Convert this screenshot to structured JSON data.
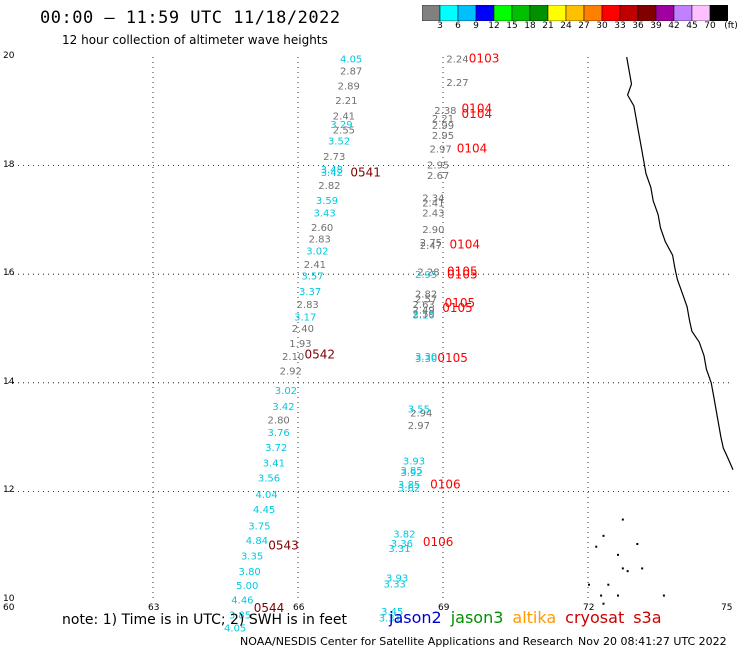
{
  "header": {
    "title": "00:00 – 11:59 UTC 11/18/2022",
    "subtitle": "12 hour collection of altimeter wave heights"
  },
  "colorbar": {
    "colors": [
      "#808080",
      "#00ffff",
      "#00bfff",
      "#0000ff",
      "#00ff00",
      "#00c000",
      "#009000",
      "#ffff00",
      "#ffc000",
      "#ff8000",
      "#ff0000",
      "#c00000",
      "#800000",
      "#a000a0",
      "#c080ff",
      "#ffc0ff",
      "#000000"
    ],
    "labels": [
      "3",
      "6",
      "9",
      "12",
      "15",
      "18",
      "21",
      "24",
      "27",
      "30",
      "33",
      "36",
      "39",
      "42",
      "45",
      "70",
      "(ft)"
    ]
  },
  "map": {
    "lon_range": [
      60,
      75
    ],
    "lat_range": [
      10,
      20
    ],
    "x_ticks": [
      "60",
      "63",
      "66",
      "69",
      "72",
      "75"
    ],
    "y_ticks": [
      "20",
      "18",
      "16",
      "14",
      "12",
      "10"
    ],
    "x_tick_values": [
      60,
      63,
      66,
      69,
      72,
      75
    ],
    "y_tick_values": [
      20,
      18,
      16,
      14,
      12,
      10
    ]
  },
  "swh_cyan": [
    {
      "lon": 67.1,
      "lat": 19.9,
      "v": "4.05"
    },
    {
      "lon": 66.9,
      "lat": 18.69,
      "v": "3.29"
    },
    {
      "lon": 66.85,
      "lat": 18.39,
      "v": "3.52"
    },
    {
      "lon": 66.7,
      "lat": 17.86,
      "v": "3.48"
    },
    {
      "lon": 66.7,
      "lat": 17.81,
      "v": "3.42"
    },
    {
      "lon": 66.6,
      "lat": 17.29,
      "v": "3.59"
    },
    {
      "lon": 66.55,
      "lat": 17.06,
      "v": "3.43"
    },
    {
      "lon": 66.4,
      "lat": 16.36,
      "v": "3.02"
    },
    {
      "lon": 66.3,
      "lat": 15.9,
      "v": "3.57"
    },
    {
      "lon": 66.25,
      "lat": 15.62,
      "v": "3.37"
    },
    {
      "lon": 66.15,
      "lat": 15.15,
      "v": "3.17"
    },
    {
      "lon": 65.75,
      "lat": 13.79,
      "v": "3.02"
    },
    {
      "lon": 65.7,
      "lat": 13.5,
      "v": "3.42"
    },
    {
      "lon": 65.6,
      "lat": 13.02,
      "v": "3.76"
    },
    {
      "lon": 65.55,
      "lat": 12.74,
      "v": "3.72"
    },
    {
      "lon": 65.5,
      "lat": 12.46,
      "v": "3.41"
    },
    {
      "lon": 65.4,
      "lat": 12.18,
      "v": "3.56"
    },
    {
      "lon": 65.35,
      "lat": 11.88,
      "v": "4.04"
    },
    {
      "lon": 65.3,
      "lat": 11.6,
      "v": "4.45"
    },
    {
      "lon": 65.2,
      "lat": 11.3,
      "v": "3.75"
    },
    {
      "lon": 65.15,
      "lat": 11.03,
      "v": "4.84"
    },
    {
      "lon": 65.05,
      "lat": 10.75,
      "v": "3.35"
    },
    {
      "lon": 65.0,
      "lat": 10.46,
      "v": "3.80"
    },
    {
      "lon": 64.95,
      "lat": 10.2,
      "v": "5.00"
    },
    {
      "lon": 64.85,
      "lat": 9.94,
      "v": "4.46"
    },
    {
      "lon": 64.8,
      "lat": 9.66,
      "v": "3.85"
    },
    {
      "lon": 64.7,
      "lat": 9.42,
      "v": "4.05"
    },
    {
      "lon": 68.65,
      "lat": 15.93,
      "v": "2.95"
    },
    {
      "lon": 68.6,
      "lat": 15.18,
      "v": "3.10"
    },
    {
      "lon": 68.65,
      "lat": 14.42,
      "v": "3.30"
    },
    {
      "lon": 68.65,
      "lat": 14.38,
      "v": "3.30"
    },
    {
      "lon": 68.5,
      "lat": 13.45,
      "v": "3.55"
    },
    {
      "lon": 68.4,
      "lat": 12.5,
      "v": "3.93"
    },
    {
      "lon": 68.35,
      "lat": 12.32,
      "v": "3.85"
    },
    {
      "lon": 68.35,
      "lat": 12.28,
      "v": "3.92"
    },
    {
      "lon": 68.3,
      "lat": 12.06,
      "v": "3.85"
    },
    {
      "lon": 68.3,
      "lat": 12.0,
      "v": "3.62"
    },
    {
      "lon": 68.2,
      "lat": 11.15,
      "v": "3.82"
    },
    {
      "lon": 68.15,
      "lat": 10.98,
      "v": "3.36"
    },
    {
      "lon": 68.1,
      "lat": 10.88,
      "v": "3.31"
    },
    {
      "lon": 68.05,
      "lat": 10.34,
      "v": "3.93"
    },
    {
      "lon": 68.0,
      "lat": 10.23,
      "v": "3.33"
    },
    {
      "lon": 67.95,
      "lat": 9.72,
      "v": "3.45"
    },
    {
      "lon": 67.9,
      "lat": 9.6,
      "v": "3.31"
    }
  ],
  "swh_gray": [
    {
      "lon": 67.1,
      "lat": 19.68,
      "v": "2.87"
    },
    {
      "lon": 67.05,
      "lat": 19.4,
      "v": "2.89"
    },
    {
      "lon": 67.0,
      "lat": 19.13,
      "v": "2.21"
    },
    {
      "lon": 66.95,
      "lat": 18.85,
      "v": "2.41"
    },
    {
      "lon": 66.95,
      "lat": 18.59,
      "v": "2.55"
    },
    {
      "lon": 66.75,
      "lat": 18.1,
      "v": "2.73"
    },
    {
      "lon": 66.65,
      "lat": 17.57,
      "v": "2.82"
    },
    {
      "lon": 66.5,
      "lat": 16.8,
      "v": "2.60"
    },
    {
      "lon": 66.45,
      "lat": 16.58,
      "v": "2.83"
    },
    {
      "lon": 66.35,
      "lat": 16.11,
      "v": "2.41"
    },
    {
      "lon": 66.2,
      "lat": 15.38,
      "v": "2.83"
    },
    {
      "lon": 66.1,
      "lat": 14.94,
      "v": "2.40"
    },
    {
      "lon": 66.05,
      "lat": 14.66,
      "v": "1.93"
    },
    {
      "lon": 65.9,
      "lat": 14.42,
      "v": "2.10"
    },
    {
      "lon": 65.85,
      "lat": 14.15,
      "v": "2.92"
    },
    {
      "lon": 65.6,
      "lat": 13.25,
      "v": "2.80"
    },
    {
      "lon": 69.3,
      "lat": 19.9,
      "v": "2.24"
    },
    {
      "lon": 69.3,
      "lat": 19.47,
      "v": "2.27"
    },
    {
      "lon": 69.05,
      "lat": 18.95,
      "v": "2.38"
    },
    {
      "lon": 69.0,
      "lat": 18.8,
      "v": "2.21"
    },
    {
      "lon": 69.0,
      "lat": 18.67,
      "v": "2.99"
    },
    {
      "lon": 69.0,
      "lat": 18.49,
      "v": "2.95"
    },
    {
      "lon": 68.95,
      "lat": 18.24,
      "v": "2.97"
    },
    {
      "lon": 68.9,
      "lat": 17.95,
      "v": "2.95"
    },
    {
      "lon": 68.9,
      "lat": 17.75,
      "v": "2.67"
    },
    {
      "lon": 68.8,
      "lat": 17.34,
      "v": "2.34"
    },
    {
      "lon": 68.8,
      "lat": 17.25,
      "v": "2.41"
    },
    {
      "lon": 68.8,
      "lat": 17.06,
      "v": "2.43"
    },
    {
      "lon": 68.8,
      "lat": 16.76,
      "v": "2.90"
    },
    {
      "lon": 68.75,
      "lat": 16.52,
      "v": "2.75"
    },
    {
      "lon": 68.75,
      "lat": 16.46,
      "v": "2.47"
    },
    {
      "lon": 68.7,
      "lat": 15.98,
      "v": "2.28"
    },
    {
      "lon": 68.65,
      "lat": 15.57,
      "v": "2.82"
    },
    {
      "lon": 68.65,
      "lat": 15.48,
      "v": "2.57"
    },
    {
      "lon": 68.6,
      "lat": 15.38,
      "v": "2.63"
    },
    {
      "lon": 68.6,
      "lat": 15.28,
      "v": "2.49"
    },
    {
      "lon": 68.6,
      "lat": 15.2,
      "v": "2.59"
    },
    {
      "lon": 68.55,
      "lat": 13.38,
      "v": "2.94"
    },
    {
      "lon": 68.5,
      "lat": 13.15,
      "v": "2.97"
    }
  ],
  "passes": [
    {
      "lon": 67.4,
      "lat": 17.8,
      "v": "0541",
      "c": "#800000"
    },
    {
      "lon": 66.45,
      "lat": 14.45,
      "v": "0542",
      "c": "#800000"
    },
    {
      "lon": 65.7,
      "lat": 10.93,
      "v": "0543",
      "c": "#800000"
    },
    {
      "lon": 65.4,
      "lat": 9.78,
      "v": "0544",
      "c": "#800000"
    },
    {
      "lon": 69.85,
      "lat": 19.9,
      "v": "0103",
      "c": "#ff0000"
    },
    {
      "lon": 69.7,
      "lat": 18.98,
      "v": "0104",
      "c": "#ff0000"
    },
    {
      "lon": 69.7,
      "lat": 18.88,
      "v": "0104",
      "c": "#ff0000"
    },
    {
      "lon": 69.6,
      "lat": 18.24,
      "v": "0104",
      "c": "#ff0000"
    },
    {
      "lon": 69.45,
      "lat": 16.47,
      "v": "0104",
      "c": "#ff0000"
    },
    {
      "lon": 69.4,
      "lat": 15.98,
      "v": "0105",
      "c": "#ff0000"
    },
    {
      "lon": 69.4,
      "lat": 15.92,
      "v": "0105",
      "c": "#ff0000"
    },
    {
      "lon": 69.35,
      "lat": 15.4,
      "v": "0105",
      "c": "#ff0000"
    },
    {
      "lon": 69.3,
      "lat": 15.3,
      "v": "0105",
      "c": "#ff0000"
    },
    {
      "lon": 69.2,
      "lat": 14.38,
      "v": "0105",
      "c": "#ff0000"
    },
    {
      "lon": 69.05,
      "lat": 12.05,
      "v": "0106",
      "c": "#ff0000"
    },
    {
      "lon": 68.9,
      "lat": 10.99,
      "v": "0106",
      "c": "#ff0000"
    }
  ],
  "note": "note: 1) Time is in UTC; 2) SWH is in feet",
  "legend": [
    {
      "label": "jason2",
      "color": "#0000cc"
    },
    {
      "label": "jason3",
      "color": "#009000"
    },
    {
      "label": "altika",
      "color": "#ff9900"
    },
    {
      "label": "cryosat",
      "color": "#cc0000"
    },
    {
      "label": "s3a",
      "color": "#cc0000"
    }
  ],
  "credit": "NOAA/NESDIS Center for Satellite Applications and Research",
  "timestamp": "Nov 20 08:41:27 UTC 2022"
}
